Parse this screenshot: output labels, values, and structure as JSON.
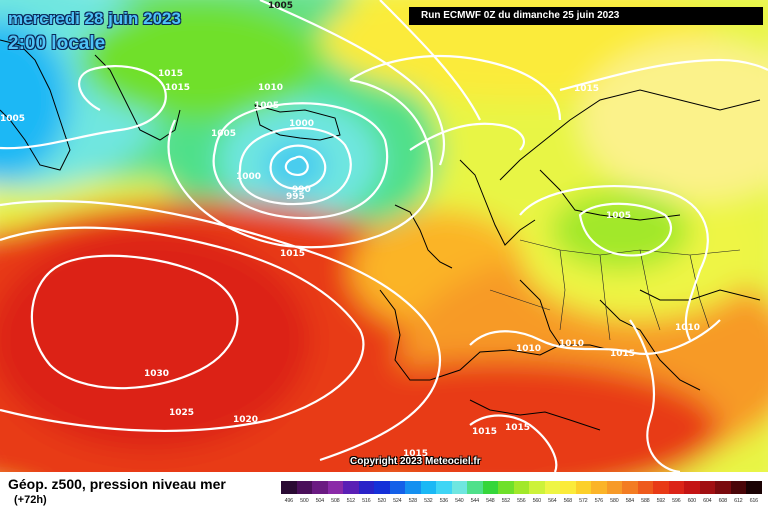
{
  "header": {
    "date": "mercredi 28 juin 2023",
    "time": "2:00 locale",
    "run": "Run ECMWF 0Z du dimanche 25 juin 2023"
  },
  "copyright": "Copyright 2023 Meteociel.fr",
  "footer": {
    "title": "Géop. z500, pression niveau mer",
    "lead": "(+72h)"
  },
  "isobar_labels": [
    "1005",
    "1015",
    "1015",
    "1010",
    "1005",
    "1005",
    "1000",
    "1000",
    "990",
    "995",
    "1015",
    "1015",
    "1005",
    "1030",
    "1025",
    "1020",
    "1015",
    "1010",
    "1010",
    "1015",
    "1010",
    "1015",
    "1015",
    "1015"
  ],
  "legend": {
    "values": [
      "496",
      "500",
      "504",
      "508",
      "512",
      "516",
      "520",
      "524",
      "528",
      "532",
      "536",
      "540",
      "544",
      "548",
      "552",
      "556",
      "560",
      "564",
      "568",
      "572",
      "576",
      "580",
      "584",
      "588",
      "592",
      "596",
      "600",
      "604",
      "608",
      "612",
      "616"
    ],
    "colors": [
      "#2a0a33",
      "#4a0f5a",
      "#6a1a82",
      "#8a2aa8",
      "#5a1fb5",
      "#2a22c8",
      "#1530d8",
      "#1460e8",
      "#1590f0",
      "#1ab8f5",
      "#3fd5f5",
      "#6fe6e0",
      "#4fe08a",
      "#35d63a",
      "#6fe02a",
      "#a2e82a",
      "#cdf23a",
      "#eef545",
      "#fbeb3a",
      "#fcd02a",
      "#fbb428",
      "#f79a28",
      "#f37c22",
      "#ee5a1c",
      "#e83a16",
      "#dc2418",
      "#c41414",
      "#a10f12",
      "#7a0a0e",
      "#4a0508",
      "#1a0204"
    ]
  }
}
